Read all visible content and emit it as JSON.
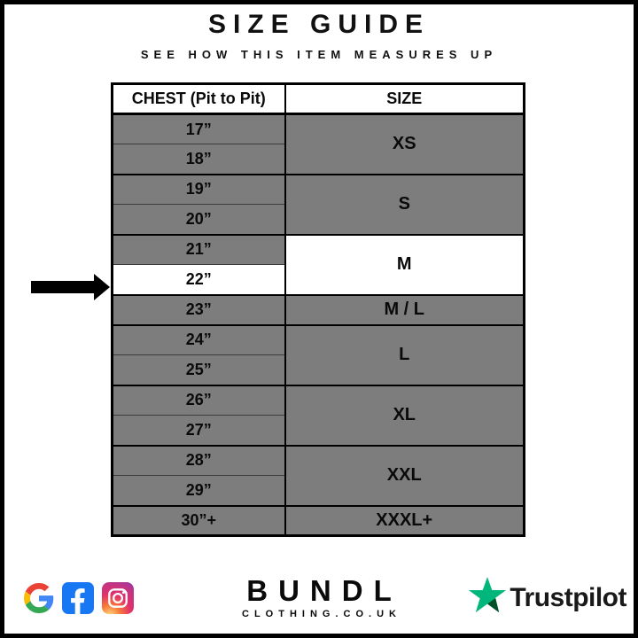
{
  "header": {
    "title": "SIZE GUIDE",
    "subtitle": "SEE HOW THIS ITEM MEASURES UP"
  },
  "table": {
    "headers": {
      "chest": "CHEST (Pit to Pit)",
      "size": "SIZE"
    },
    "groups": [
      {
        "size": "XS",
        "chest": [
          "17”",
          "18”"
        ],
        "highlighted": false,
        "highlight_chest_index": -1
      },
      {
        "size": "S",
        "chest": [
          "19”",
          "20”"
        ],
        "highlighted": false,
        "highlight_chest_index": -1
      },
      {
        "size": "M",
        "chest": [
          "21”",
          "22”"
        ],
        "highlighted": true,
        "highlight_chest_index": 1
      },
      {
        "size": "M / L",
        "chest": [
          "23”"
        ],
        "highlighted": false,
        "highlight_chest_index": -1
      },
      {
        "size": "L",
        "chest": [
          "24”",
          "25”"
        ],
        "highlighted": false,
        "highlight_chest_index": -1
      },
      {
        "size": "XL",
        "chest": [
          "26”",
          "27”"
        ],
        "highlighted": false,
        "highlight_chest_index": -1
      },
      {
        "size": "XXL",
        "chest": [
          "28”",
          "29”"
        ],
        "highlighted": false,
        "highlight_chest_index": -1
      },
      {
        "size": "XXXL+",
        "chest": [
          "30”+"
        ],
        "highlighted": false,
        "highlight_chest_index": -1
      }
    ],
    "colors": {
      "row_gray": "#7d7d7d",
      "highlight": "#ffffff",
      "border": "#000000"
    }
  },
  "indicator": {
    "arrow_points_to": "22”"
  },
  "footer": {
    "brand": "BUNDL",
    "brand_domain": "CLOTHING.CO.UK",
    "social_icons": [
      "google-icon",
      "facebook-icon",
      "instagram-icon"
    ],
    "trustpilot": {
      "label": "Trustpilot",
      "star_green": "#00b67a",
      "star_dark": "#005128"
    },
    "facebook_blue": "#1877f2"
  },
  "chart_data": {
    "type": "table",
    "title": "SIZE GUIDE",
    "subtitle": "SEE HOW THIS ITEM MEASURES UP",
    "columns": [
      "CHEST (Pit to Pit)",
      "SIZE"
    ],
    "rows": [
      [
        "17”",
        "XS"
      ],
      [
        "18”",
        "XS"
      ],
      [
        "19”",
        "S"
      ],
      [
        "20”",
        "S"
      ],
      [
        "21”",
        "M"
      ],
      [
        "22”",
        "M"
      ],
      [
        "23”",
        "M / L"
      ],
      [
        "24”",
        "L"
      ],
      [
        "25”",
        "L"
      ],
      [
        "26”",
        "XL"
      ],
      [
        "27”",
        "XL"
      ],
      [
        "28”",
        "XXL"
      ],
      [
        "29”",
        "XXL"
      ],
      [
        "30”+",
        "XXXL+"
      ]
    ],
    "highlighted_cells": [
      "22”",
      "M"
    ],
    "legend_position": "none",
    "grid": true
  }
}
